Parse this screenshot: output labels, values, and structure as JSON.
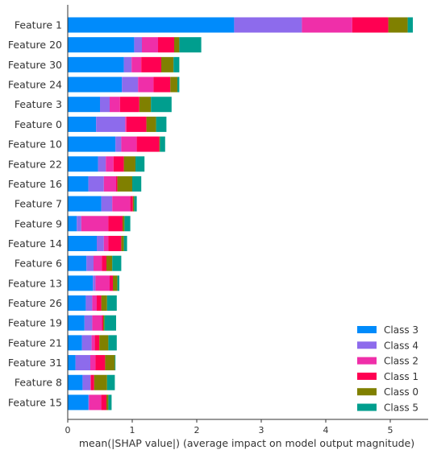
{
  "chart_data": {
    "type": "bar",
    "orientation": "horizontal",
    "stacked": true,
    "title": "",
    "xlabel": "mean(|SHAP value|) (average impact on model output magnitude)",
    "ylabel": "",
    "xlim": [
      0,
      5.5
    ],
    "xticks": [
      "0",
      "1",
      "2",
      "3",
      "4",
      "5"
    ],
    "grid": false,
    "legend_position": "bottom-right",
    "categories": [
      "Feature 1",
      "Feature 20",
      "Feature 30",
      "Feature 24",
      "Feature 3",
      "Feature 0",
      "Feature 10",
      "Feature 22",
      "Feature 16",
      "Feature 7",
      "Feature 9",
      "Feature 14",
      "Feature 6",
      "Feature 13",
      "Feature 26",
      "Feature 19",
      "Feature 21",
      "Feature 31",
      "Feature 8",
      "Feature 15"
    ],
    "series": [
      {
        "name": "Class 3",
        "color": "#008bfb",
        "values": [
          2.58,
          1.03,
          0.87,
          0.84,
          0.5,
          0.44,
          0.74,
          0.47,
          0.32,
          0.52,
          0.14,
          0.45,
          0.29,
          0.39,
          0.28,
          0.26,
          0.22,
          0.12,
          0.23,
          0.32
        ]
      },
      {
        "name": "Class 4",
        "color": "#8d6bec",
        "values": [
          1.05,
          0.12,
          0.12,
          0.25,
          0.15,
          0.45,
          0.09,
          0.12,
          0.24,
          0.17,
          0.07,
          0.11,
          0.11,
          0.04,
          0.1,
          0.12,
          0.15,
          0.23,
          0.12,
          0.01
        ]
      },
      {
        "name": "Class 2",
        "color": "#ef2fa9",
        "values": [
          0.78,
          0.25,
          0.15,
          0.24,
          0.16,
          0.02,
          0.24,
          0.12,
          0.19,
          0.28,
          0.42,
          0.07,
          0.13,
          0.22,
          0.07,
          0.15,
          0.05,
          0.08,
          0.01,
          0.19
        ]
      },
      {
        "name": "Class 1",
        "color": "#ff0052",
        "values": [
          0.56,
          0.25,
          0.31,
          0.26,
          0.3,
          0.31,
          0.35,
          0.16,
          0.02,
          0.04,
          0.22,
          0.2,
          0.07,
          0.05,
          0.07,
          0.02,
          0.07,
          0.15,
          0.05,
          0.08
        ]
      },
      {
        "name": "Class 0",
        "color": "#808000",
        "values": [
          0.3,
          0.08,
          0.19,
          0.11,
          0.18,
          0.15,
          0.01,
          0.18,
          0.23,
          0.02,
          0.03,
          0.04,
          0.09,
          0.07,
          0.09,
          0.02,
          0.14,
          0.15,
          0.2,
          0.03
        ]
      },
      {
        "name": "Class 5",
        "color": "#009e8e",
        "values": [
          0.08,
          0.34,
          0.09,
          0.03,
          0.32,
          0.16,
          0.08,
          0.14,
          0.14,
          0.04,
          0.09,
          0.05,
          0.14,
          0.03,
          0.15,
          0.18,
          0.13,
          0.01,
          0.12,
          0.05
        ]
      }
    ]
  }
}
